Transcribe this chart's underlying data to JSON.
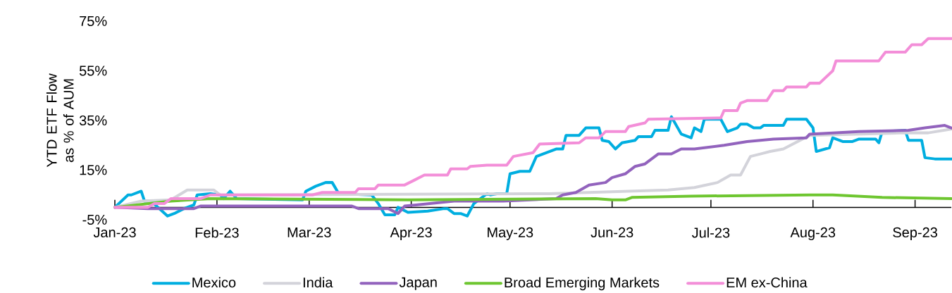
{
  "chart_data": {
    "type": "line",
    "ylabel": "YTD ETF Flow as % of AUM",
    "xlim": [
      "2023-01-01",
      "2023-09-12"
    ],
    "xticks": [
      {
        "value": "2023-01-01",
        "label": "Jan-23"
      },
      {
        "value": "2023-02-01",
        "label": "Feb-23"
      },
      {
        "value": "2023-03-01",
        "label": "Mar-23"
      },
      {
        "value": "2023-04-01",
        "label": "Apr-23"
      },
      {
        "value": "2023-05-01",
        "label": "May-23"
      },
      {
        "value": "2023-06-01",
        "label": "Jun-23"
      },
      {
        "value": "2023-07-01",
        "label": "Jul-23"
      },
      {
        "value": "2023-08-01",
        "label": "Aug-23"
      },
      {
        "value": "2023-09-01",
        "label": "Sep-23"
      }
    ],
    "ylim": [
      -5,
      75
    ],
    "yticks": [
      {
        "value": -5,
        "label": "-5%"
      },
      {
        "value": 15,
        "label": "15%"
      },
      {
        "value": 35,
        "label": "35%"
      },
      {
        "value": 55,
        "label": "55%"
      },
      {
        "value": 75,
        "label": "75%"
      }
    ],
    "legend": "bottom",
    "series": [
      {
        "name": "Mexico",
        "color": "#00aee0",
        "x": [
          "2023-01-01",
          "2023-01-05",
          "2023-01-06",
          "2023-01-09",
          "2023-01-10",
          "2023-01-12",
          "2023-01-17",
          "2023-01-19",
          "2023-01-22",
          "2023-01-25",
          "2023-01-26",
          "2023-01-30",
          "2023-02-02",
          "2023-02-03",
          "2023-02-05",
          "2023-02-07",
          "2023-02-27",
          "2023-02-28",
          "2023-03-03",
          "2023-03-06",
          "2023-03-08",
          "2023-03-10",
          "2023-03-20",
          "2023-03-22",
          "2023-03-24",
          "2023-03-27",
          "2023-03-28",
          "2023-03-31",
          "2023-04-06",
          "2023-04-11",
          "2023-04-12",
          "2023-04-14",
          "2023-04-16",
          "2023-04-18",
          "2023-04-20",
          "2023-04-24",
          "2023-04-25",
          "2023-04-27",
          "2023-04-30",
          "2023-05-01",
          "2023-05-04",
          "2023-05-07",
          "2023-05-09",
          "2023-05-11",
          "2023-05-15",
          "2023-05-17",
          "2023-05-18",
          "2023-05-22",
          "2023-05-24",
          "2023-05-28",
          "2023-05-29",
          "2023-05-31",
          "2023-06-02",
          "2023-06-04",
          "2023-06-06",
          "2023-06-08",
          "2023-06-09",
          "2023-06-13",
          "2023-06-14",
          "2023-06-18",
          "2023-06-19",
          "2023-06-22",
          "2023-06-25",
          "2023-06-26",
          "2023-06-28",
          "2023-06-29",
          "2023-07-04",
          "2023-07-06",
          "2023-07-09",
          "2023-07-10",
          "2023-07-12",
          "2023-07-14",
          "2023-07-16",
          "2023-07-17",
          "2023-07-23",
          "2023-07-24",
          "2023-07-30",
          "2023-08-01",
          "2023-08-02",
          "2023-08-06",
          "2023-08-07",
          "2023-08-10",
          "2023-08-13",
          "2023-08-15",
          "2023-08-20",
          "2023-08-21",
          "2023-08-22",
          "2023-08-29",
          "2023-08-30",
          "2023-09-03",
          "2023-09-04",
          "2023-09-07",
          "2023-09-12"
        ],
        "values": [
          0,
          5,
          5,
          6.5,
          2.5,
          2.5,
          -3.5,
          -2.5,
          -0.5,
          1,
          5,
          5.5,
          5,
          3.5,
          6.5,
          3.5,
          3,
          6.5,
          8.5,
          10,
          10,
          5.5,
          5,
          1.5,
          -3,
          -3,
          0,
          -2,
          -1.5,
          -0.5,
          -0.5,
          -2.5,
          -2.5,
          -3.5,
          1.5,
          5.5,
          5,
          5.5,
          5.5,
          13.5,
          14.5,
          14.5,
          20.5,
          21.5,
          23.5,
          23.5,
          29,
          29,
          32,
          32,
          27,
          26.5,
          23.5,
          26,
          26.5,
          27,
          28.5,
          28.5,
          31,
          31,
          36.5,
          29.5,
          28,
          32,
          30.5,
          35.5,
          35.5,
          30.5,
          32,
          33.5,
          33.5,
          32,
          32,
          33,
          33,
          35.5,
          35.5,
          32,
          22.5,
          24,
          28,
          26.5,
          26.5,
          27.5,
          27.5,
          26,
          30.5,
          31,
          27,
          27,
          20,
          19.5,
          19.5
        ]
      },
      {
        "name": "India",
        "color": "#d3d3da",
        "x": [
          "2023-01-01",
          "2023-01-09",
          "2023-01-18",
          "2023-01-23",
          "2023-01-31",
          "2023-02-02",
          "2023-05-13",
          "2023-06-18",
          "2023-06-26",
          "2023-07-03",
          "2023-07-07",
          "2023-07-10",
          "2023-07-13",
          "2023-07-16",
          "2023-07-19",
          "2023-07-23",
          "2023-07-31",
          "2023-08-29",
          "2023-09-05",
          "2023-09-12"
        ],
        "values": [
          0,
          2.5,
          3,
          7,
          7,
          5,
          5.5,
          7,
          8,
          10,
          13,
          13,
          20.5,
          21.5,
          22.5,
          23.5,
          29,
          30,
          30,
          31.5
        ]
      },
      {
        "name": "Japan",
        "color": "#9263bd",
        "x": [
          "2023-01-01",
          "2023-01-11",
          "2023-01-25",
          "2023-01-27",
          "2023-03-14",
          "2023-03-16",
          "2023-03-25",
          "2023-03-28",
          "2023-03-30",
          "2023-04-03",
          "2023-04-14",
          "2023-04-29",
          "2023-05-07",
          "2023-05-15",
          "2023-05-17",
          "2023-05-21",
          "2023-05-25",
          "2023-05-30",
          "2023-06-01",
          "2023-06-05",
          "2023-06-08",
          "2023-06-11",
          "2023-06-15",
          "2023-06-19",
          "2023-06-22",
          "2023-06-26",
          "2023-07-05",
          "2023-07-12",
          "2023-07-20",
          "2023-07-30",
          "2023-07-31",
          "2023-08-15",
          "2023-08-30",
          "2023-09-04",
          "2023-09-10",
          "2023-09-12"
        ],
        "values": [
          0,
          -0.5,
          -0.5,
          0.5,
          0.5,
          -0.5,
          -0.5,
          -2.5,
          0.5,
          1,
          2.5,
          2.5,
          3,
          3.5,
          5,
          6,
          9,
          10,
          12,
          13.5,
          16.5,
          17.5,
          21.5,
          21.5,
          23.5,
          23.5,
          25,
          26.5,
          27.5,
          28,
          29.5,
          30.5,
          31,
          32,
          33,
          32
        ]
      },
      {
        "name": "Broad Emerging Markets",
        "color": "#6ec630",
        "x": [
          "2023-01-01",
          "2023-01-18",
          "2023-01-30",
          "2023-03-31",
          "2023-05-27",
          "2023-06-01",
          "2023-06-05",
          "2023-06-07",
          "2023-06-25",
          "2023-07-31",
          "2023-08-07",
          "2023-08-22",
          "2023-09-12"
        ],
        "values": [
          0,
          2.5,
          3.5,
          3,
          3.5,
          3,
          3,
          4,
          4.5,
          5,
          5,
          4,
          3.5
        ]
      },
      {
        "name": "EM ex-China",
        "color": "#f38ed8",
        "x": [
          "2023-01-01",
          "2023-01-11",
          "2023-01-13",
          "2023-01-16",
          "2023-01-18",
          "2023-01-27",
          "2023-01-30",
          "2023-03-02",
          "2023-03-05",
          "2023-03-15",
          "2023-03-16",
          "2023-03-21",
          "2023-03-22",
          "2023-03-30",
          "2023-04-02",
          "2023-04-05",
          "2023-04-12",
          "2023-04-13",
          "2023-04-18",
          "2023-04-19",
          "2023-04-24",
          "2023-04-30",
          "2023-05-02",
          "2023-05-08",
          "2023-05-10",
          "2023-05-22",
          "2023-05-24",
          "2023-05-28",
          "2023-05-30",
          "2023-06-05",
          "2023-06-06",
          "2023-06-11",
          "2023-06-12",
          "2023-07-04",
          "2023-07-05",
          "2023-07-09",
          "2023-07-10",
          "2023-07-12",
          "2023-07-18",
          "2023-07-20",
          "2023-07-23",
          "2023-07-24",
          "2023-07-30",
          "2023-07-31",
          "2023-08-03",
          "2023-08-07",
          "2023-08-08",
          "2023-08-21",
          "2023-08-23",
          "2023-08-29",
          "2023-08-31",
          "2023-09-03",
          "2023-09-05",
          "2023-09-12"
        ],
        "values": [
          0,
          0,
          1.5,
          1.5,
          3.5,
          3.5,
          5,
          5,
          6,
          6,
          7.5,
          7.5,
          9,
          9,
          11,
          13,
          13,
          15.5,
          15.5,
          16.5,
          17,
          17,
          20.5,
          22,
          25.5,
          26,
          28,
          28,
          30.5,
          30.5,
          32.5,
          34,
          35.5,
          36,
          39,
          39,
          42,
          43,
          43,
          47,
          47,
          48.5,
          48.5,
          50,
          50,
          55,
          59,
          59,
          62.5,
          62.5,
          65.5,
          65.5,
          68,
          68
        ]
      }
    ]
  }
}
